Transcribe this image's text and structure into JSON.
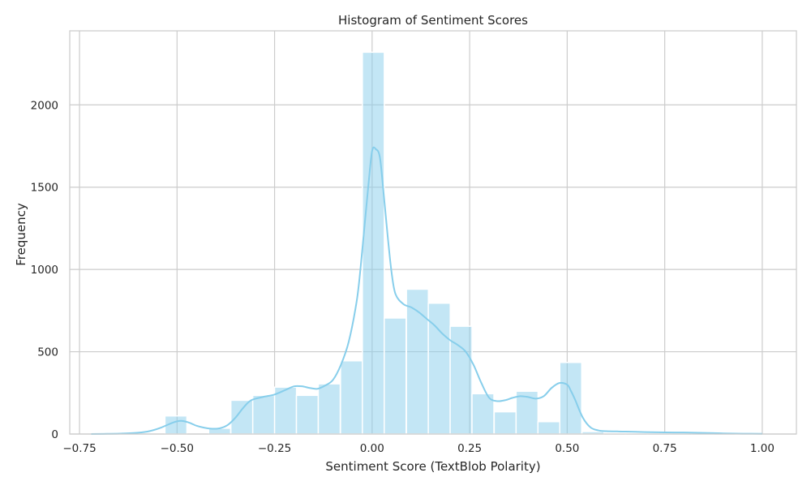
{
  "chart_data": {
    "type": "bar",
    "title": "Histogram of Sentiment Scores",
    "xlabel": "Sentiment Score (TextBlob Polarity)",
    "ylabel": "Frequency",
    "xlim": [
      -0.775,
      1.0875
    ],
    "ylim": [
      0,
      2450
    ],
    "grid": true,
    "bin_width": 0.05625,
    "x_ticks": [
      {
        "value": -0.75,
        "label": "−0.75"
      },
      {
        "value": -0.5,
        "label": "−0.50"
      },
      {
        "value": -0.25,
        "label": "−0.25"
      },
      {
        "value": 0.0,
        "label": "0.00"
      },
      {
        "value": 0.25,
        "label": "0.25"
      },
      {
        "value": 0.5,
        "label": "0.50"
      },
      {
        "value": 0.75,
        "label": "0.75"
      },
      {
        "value": 1.0,
        "label": "1.00"
      }
    ],
    "y_ticks": [
      {
        "value": 0,
        "label": "0"
      },
      {
        "value": 500,
        "label": "500"
      },
      {
        "value": 1000,
        "label": "1000"
      },
      {
        "value": 1500,
        "label": "1500"
      },
      {
        "value": 2000,
        "label": "2000"
      }
    ],
    "bins": [
      {
        "start": -0.7,
        "count": 0
      },
      {
        "start": -0.644,
        "count": 0
      },
      {
        "start": -0.588,
        "count": 0
      },
      {
        "start": -0.531,
        "count": 110
      },
      {
        "start": -0.475,
        "count": 0
      },
      {
        "start": -0.419,
        "count": 35
      },
      {
        "start": -0.362,
        "count": 205
      },
      {
        "start": -0.306,
        "count": 235
      },
      {
        "start": -0.25,
        "count": 285
      },
      {
        "start": -0.194,
        "count": 235
      },
      {
        "start": -0.138,
        "count": 305
      },
      {
        "start": -0.081,
        "count": 445
      },
      {
        "start": -0.025,
        "count": 2320
      },
      {
        "start": 0.031,
        "count": 705
      },
      {
        "start": 0.088,
        "count": 880
      },
      {
        "start": 0.144,
        "count": 795
      },
      {
        "start": 0.2,
        "count": 655
      },
      {
        "start": 0.256,
        "count": 245
      },
      {
        "start": 0.313,
        "count": 135
      },
      {
        "start": 0.369,
        "count": 260
      },
      {
        "start": 0.425,
        "count": 75
      },
      {
        "start": 0.481,
        "count": 435
      },
      {
        "start": 0.538,
        "count": 15
      },
      {
        "start": 0.594,
        "count": 5
      },
      {
        "start": 0.65,
        "count": 3
      },
      {
        "start": 0.706,
        "count": 2
      },
      {
        "start": 0.763,
        "count": 2
      },
      {
        "start": 0.819,
        "count": 1
      },
      {
        "start": 0.875,
        "count": 0
      },
      {
        "start": 0.931,
        "count": 1
      }
    ],
    "kde": {
      "x": [
        -0.72,
        -0.68,
        -0.64,
        -0.6,
        -0.57,
        -0.54,
        -0.51,
        -0.49,
        -0.47,
        -0.45,
        -0.43,
        -0.41,
        -0.39,
        -0.37,
        -0.35,
        -0.33,
        -0.31,
        -0.28,
        -0.25,
        -0.22,
        -0.2,
        -0.18,
        -0.16,
        -0.14,
        -0.12,
        -0.1,
        -0.08,
        -0.06,
        -0.04,
        -0.03,
        -0.02,
        -0.01,
        0.0,
        0.01,
        0.02,
        0.03,
        0.04,
        0.05,
        0.06,
        0.08,
        0.1,
        0.12,
        0.14,
        0.16,
        0.18,
        0.2,
        0.22,
        0.24,
        0.26,
        0.28,
        0.3,
        0.32,
        0.34,
        0.36,
        0.38,
        0.4,
        0.42,
        0.44,
        0.46,
        0.48,
        0.5,
        0.51,
        0.52,
        0.54,
        0.56,
        0.58,
        0.6,
        0.65,
        0.7,
        0.75,
        0.8,
        0.85,
        0.9,
        0.95,
        1.0
      ],
      "y": [
        0,
        1,
        3,
        8,
        18,
        40,
        70,
        80,
        70,
        50,
        38,
        32,
        35,
        55,
        100,
        160,
        205,
        225,
        240,
        270,
        290,
        290,
        280,
        275,
        295,
        330,
        420,
        560,
        800,
        1000,
        1250,
        1500,
        1720,
        1730,
        1680,
        1450,
        1200,
        980,
        850,
        790,
        770,
        740,
        700,
        660,
        610,
        570,
        540,
        500,
        420,
        310,
        220,
        200,
        205,
        220,
        230,
        225,
        215,
        230,
        280,
        310,
        300,
        260,
        210,
        100,
        40,
        22,
        17,
        15,
        12,
        10,
        9,
        7,
        4,
        2,
        1
      ]
    }
  },
  "colors": {
    "bar_fill": "#87ceeb",
    "kde_line": "#87ceeb",
    "grid": "#cccccc",
    "axis_edge": "#cccccc",
    "text": "#262626"
  }
}
